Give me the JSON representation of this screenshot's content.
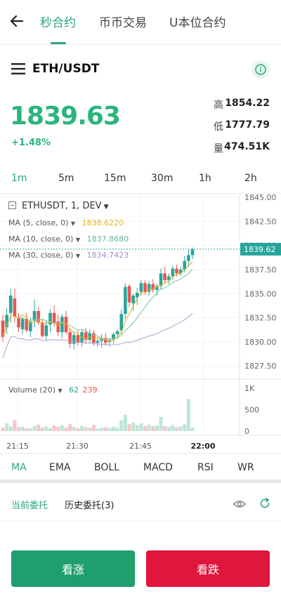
{
  "nav": {
    "tabs": [
      "秒合约",
      "币币交易",
      "U本位合约"
    ],
    "active_tab": 0
  },
  "pair": {
    "symbol": "ETH/USDT"
  },
  "ticker": {
    "price": "1839.63",
    "change": "+1.48%",
    "high_label": "高",
    "high": "1854.22",
    "low_label": "低",
    "low": "1777.79",
    "vol_label": "量",
    "vol": "474.51K"
  },
  "intervals": [
    "1m",
    "5m",
    "15m",
    "30m",
    "1h",
    "2h"
  ],
  "active_interval": "1m",
  "chart_header": {
    "symbol_line": "ETHUSDT, 1, DEV",
    "ma5_label": "MA (5, close, 0)",
    "ma5_value": "1838.6220",
    "ma10_label": "MA (10, close, 0)",
    "ma10_value": "1837.8680",
    "ma30_label": "MA (30, close, 0)",
    "ma30_value": "1834.7423",
    "volume_label": "Volume (20)",
    "vol_up": "62",
    "vol_down": "239"
  },
  "colors": {
    "up": "#26a69a",
    "down": "#ef5350",
    "accent": "#2aa877",
    "ma5": "#e6b422",
    "ma10": "#7fcbb3",
    "ma30": "#b7a3d6"
  },
  "chart_data": {
    "type": "candlestick",
    "price_axis": [
      "1845.00",
      "1842.50",
      "1840.00",
      "1837.50",
      "1835.00",
      "1832.50",
      "1830.00",
      "1827.50"
    ],
    "ylim": [
      1826.2,
      1845.3
    ],
    "current_price_label": "1839.62",
    "volume_axis": [
      "1K",
      "500",
      "0"
    ],
    "volume_max": 1000,
    "time_labels": [
      "21:15",
      "21:30",
      "21:45",
      "22:00"
    ],
    "time_label_x": [
      11,
      96,
      186,
      275
    ],
    "ohlc": [
      [
        1832.2,
        1832.8,
        1830.0,
        1830.5
      ],
      [
        1831.5,
        1833.5,
        1830.8,
        1832.8
      ],
      [
        1833.0,
        1835.5,
        1832.0,
        1834.8
      ],
      [
        1834.5,
        1835.5,
        1832.0,
        1832.6
      ],
      [
        1832.5,
        1833.0,
        1831.0,
        1831.5
      ],
      [
        1831.3,
        1832.6,
        1830.8,
        1832.4
      ],
      [
        1832.4,
        1833.0,
        1831.0,
        1831.2
      ],
      [
        1831.1,
        1832.5,
        1830.5,
        1832.1
      ],
      [
        1832.2,
        1834.4,
        1831.5,
        1833.2
      ],
      [
        1833.2,
        1833.6,
        1831.8,
        1832.0
      ],
      [
        1832.0,
        1832.4,
        1830.4,
        1830.6
      ],
      [
        1830.6,
        1832.2,
        1830.2,
        1831.7
      ],
      [
        1831.8,
        1833.4,
        1831.0,
        1833.0
      ],
      [
        1833.0,
        1833.8,
        1831.6,
        1832.0
      ],
      [
        1832.1,
        1832.8,
        1830.6,
        1831.0
      ],
      [
        1831.0,
        1832.9,
        1830.4,
        1832.6
      ],
      [
        1832.6,
        1833.2,
        1830.8,
        1831.0
      ],
      [
        1831.0,
        1831.4,
        1829.4,
        1829.8
      ],
      [
        1829.8,
        1831.0,
        1829.2,
        1830.7
      ],
      [
        1830.7,
        1831.2,
        1829.6,
        1829.9
      ],
      [
        1829.9,
        1831.3,
        1829.5,
        1831.0
      ],
      [
        1831.0,
        1831.4,
        1829.8,
        1830.2
      ],
      [
        1830.2,
        1831.3,
        1829.9,
        1830.9
      ],
      [
        1830.9,
        1831.2,
        1829.6,
        1829.9
      ],
      [
        1829.9,
        1830.4,
        1829.5,
        1830.1
      ],
      [
        1830.1,
        1830.8,
        1829.4,
        1830.4
      ],
      [
        1830.4,
        1830.9,
        1829.6,
        1829.9
      ],
      [
        1830.0,
        1830.4,
        1829.5,
        1830.2
      ],
      [
        1830.2,
        1831.0,
        1829.8,
        1830.8
      ],
      [
        1830.8,
        1831.3,
        1830.3,
        1831.1
      ],
      [
        1831.2,
        1833.4,
        1830.8,
        1832.9
      ],
      [
        1832.9,
        1836.1,
        1832.4,
        1835.7
      ],
      [
        1835.8,
        1836.0,
        1833.6,
        1834.1
      ],
      [
        1834.0,
        1835.0,
        1833.2,
        1834.8
      ],
      [
        1834.6,
        1835.6,
        1833.8,
        1835.1
      ],
      [
        1835.2,
        1836.4,
        1834.8,
        1836.1
      ],
      [
        1836.1,
        1836.4,
        1834.9,
        1835.2
      ],
      [
        1835.2,
        1836.3,
        1834.8,
        1836.0
      ],
      [
        1836.0,
        1836.5,
        1835.1,
        1835.4
      ],
      [
        1835.4,
        1836.0,
        1834.8,
        1835.8
      ],
      [
        1835.8,
        1837.6,
        1835.4,
        1837.1
      ],
      [
        1837.1,
        1837.8,
        1836.0,
        1836.4
      ],
      [
        1836.4,
        1837.1,
        1836.0,
        1836.8
      ],
      [
        1836.8,
        1837.9,
        1836.4,
        1837.6
      ],
      [
        1837.6,
        1838.0,
        1836.8,
        1837.1
      ],
      [
        1837.1,
        1837.8,
        1836.8,
        1837.5
      ],
      [
        1837.5,
        1838.9,
        1837.2,
        1838.4
      ],
      [
        1838.4,
        1839.6,
        1837.8,
        1839.0
      ],
      [
        1839.0,
        1839.8,
        1838.6,
        1839.6
      ]
    ],
    "volume": [
      80,
      180,
      110,
      260,
      90,
      100,
      60,
      70,
      120,
      150,
      80,
      110,
      70,
      130,
      100,
      140,
      80,
      160,
      100,
      70,
      120,
      90,
      80,
      140,
      60,
      80,
      90,
      70,
      100,
      80,
      250,
      380,
      160,
      200,
      140,
      180,
      120,
      150,
      110,
      130,
      330,
      120,
      100,
      140,
      90,
      110,
      160,
      750,
      80
    ]
  },
  "indicators": [
    "MA",
    "EMA",
    "BOLL",
    "MACD",
    "RSI",
    "WR"
  ],
  "active_indicator": "MA",
  "orders": {
    "current": "当前委托",
    "history": "历史委托(3)"
  },
  "actions": {
    "up": "看涨",
    "down": "看跌"
  }
}
